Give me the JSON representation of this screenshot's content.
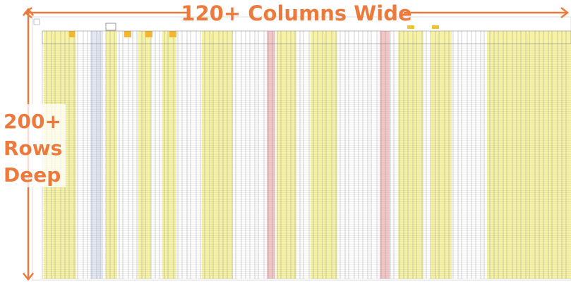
{
  "annotations": {
    "columns": "120+ Columns Wide",
    "rows": [
      "200+",
      "Rows",
      "Deep"
    ]
  }
}
